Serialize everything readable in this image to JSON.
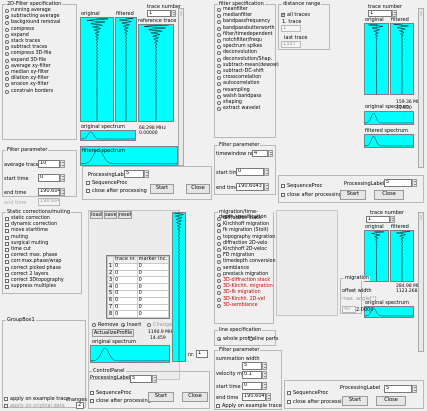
{
  "colors": {
    "view_bg": "#00ffff",
    "trace_color": "#000000",
    "text_red": "#cc0000"
  },
  "filter2d": {
    "title": "2D-Filter specification",
    "options": [
      "running average",
      "subtracting average",
      "background removal",
      "compress",
      "expand",
      "stack traces",
      "subtract traces",
      "compress 3D-file",
      "expand 3D-file",
      "average xy-filter",
      "median xy-filter",
      "dilation xy-filter",
      "erosion xy-filter",
      "constrain borders"
    ],
    "selected": 1
  },
  "panel_a": {
    "trace_number_label": "trace number",
    "trace_number": "1",
    "original_label": "original",
    "filtered_label": "filtered",
    "reference_label": "reference trace",
    "freq": "68.298 MHz",
    "val": "0.00000",
    "spectrum_label": "original spectrum",
    "filtered_spectrum_label": "filtered spectrum"
  },
  "filter_params_a": {
    "title": "Filter parameter",
    "avg_label": "average traces",
    "avg": "10",
    "start_label": "start time",
    "start": "0",
    "end_label": "end time",
    "end": "190.6043",
    "end2_label": "end time",
    "end2": "190.6043"
  },
  "proc_a": {
    "label": "ProcessingLabel",
    "value": "5",
    "seq": "SequenceProc",
    "close_after": "close after processing",
    "start": "Start",
    "close": "Close"
  },
  "filter1d": {
    "title": "filter specification",
    "options": [
      "meanfilter",
      "medianfilter",
      "bandpassfrequency",
      "bandpassbutterworth",
      "filter/timedependent",
      "notchfilter/frequ",
      "spectrum spikes",
      "deconvolution",
      "deconvolution/Shap.",
      "subtract-mean(dewow)",
      "subtract-DC-shift",
      "crosscorrelation",
      "autocorrelation",
      "resampling",
      "walsh bandpass",
      "shaping",
      "extract wavelet"
    ],
    "selected": -1
  },
  "distance": {
    "title": "distance range",
    "all_traces": "all traces",
    "first_label": "1. trace",
    "first": "1",
    "last_label": "last trace",
    "last": "1337"
  },
  "panel_b": {
    "trace_number_label": "trace number",
    "trace_number": "1",
    "original_label": "original",
    "filtered_label": "filtered",
    "freq": "159.36 MHz",
    "val": "41.930",
    "spectrum_label": "original spectrum",
    "filtered_spectrum_label": "filtered spectrum"
  },
  "filter_params_b": {
    "title": "Filter parameter",
    "timewindow_label": "timewindow nr.",
    "timewindow": "4",
    "start_label": "start time",
    "start": "0",
    "end_label": "end time",
    "end": "190.6043"
  },
  "proc_b": {
    "label": "ProcessingLabel",
    "value": "5",
    "seq": "SequenceProc",
    "close_after": "close after processing",
    "start": "Start",
    "close": "Close"
  },
  "static": {
    "title": "Static corrections/muting",
    "options": [
      "static correction",
      "dynamic correction",
      "move starttime",
      "muting",
      "surgical muting",
      "time cut",
      "correct max. phase",
      "corr.max.phase/wrap",
      "correct picked phase",
      "correct 2 layers",
      "correct 3Dtopography",
      "suppress multiples"
    ],
    "selected": -1
  },
  "groupbox1": {
    "title": "GroupBox1",
    "apply_example": "apply on example trace",
    "apply_original": "apply on original data",
    "changes_label": "changes",
    "changes": "2"
  },
  "table": {
    "tabs": [
      "load",
      "save",
      "reset"
    ],
    "headers": [
      "trace nr.",
      "marker inc."
    ],
    "rows": [
      [
        "1",
        "0",
        "0"
      ],
      [
        "2",
        "0",
        "0"
      ],
      [
        "3",
        "0",
        "0"
      ],
      [
        "4",
        "0",
        "0"
      ],
      [
        "5",
        "0",
        "0"
      ],
      [
        "6",
        "0",
        "0"
      ],
      [
        "7",
        "0",
        "0"
      ],
      [
        "8",
        "0",
        "0"
      ]
    ],
    "remove": "Remove",
    "insert": "Insert",
    "change": "Change",
    "actualize": "ActualizeProfile",
    "freq": "1190.9 MHz",
    "val": "14.459",
    "spectrum_label": "original spectrum",
    "nr_label": "nr.",
    "nr": "1"
  },
  "control": {
    "title": "ControlPanel",
    "label": "ProcessingLabel",
    "value": "5",
    "seq": "SequenceProc",
    "close_after": "close after processing",
    "start": "Start",
    "close": "Close"
  },
  "migration": {
    "title": "migration/time-depth specification",
    "options": [
      "diffraction stack",
      "Kirchhoff migration",
      "fk migration (Stolt)",
      "topography migration",
      "diffraction 2D-velo",
      "Kirchhoff 2D-veloc",
      "FD migration",
      "timedepth conversion",
      "semblance",
      "prestack migration",
      "3D-diffraction stack",
      "3D-Kirchh. migration",
      "3D-fk migration",
      "3D-Kirchh. 2D-vel",
      "3D-semblance"
    ],
    "selected": 1,
    "red_from": 10
  },
  "panel_c": {
    "trace_number_label": "trace number",
    "trace_number": "1",
    "original_label": "original",
    "filtered_label": "filtered",
    "freq": "284.98 MHz",
    "val": "1123.268",
    "spectrum_label": "original spectrum"
  },
  "migration_box": {
    "title": "migration",
    "offset_label": "offset width",
    "max_angle_label": "max. angle[°]",
    "max_angle": "45",
    "zero_shift": "2.0000",
    "vel_label": "zero shift"
  },
  "line_spec": {
    "title": "line specification",
    "options": [
      "whole profile",
      "line parts"
    ],
    "selected": 0
  },
  "filter_params_c": {
    "title": "Filter parameter",
    "sum_label": "summation width",
    "sum": "5",
    "vel_label": "velocity m/ns",
    "vel": "0.1",
    "start_label": "start time",
    "start": "0",
    "end_label": "end time",
    "end": "190.6043",
    "apply_example": "Apply on example trace"
  },
  "proc_c": {
    "label": "ProcessingLabel",
    "value": "5",
    "seq": "SequenceProc",
    "close_after": "close after processing",
    "start": "Start",
    "close": "Close"
  }
}
